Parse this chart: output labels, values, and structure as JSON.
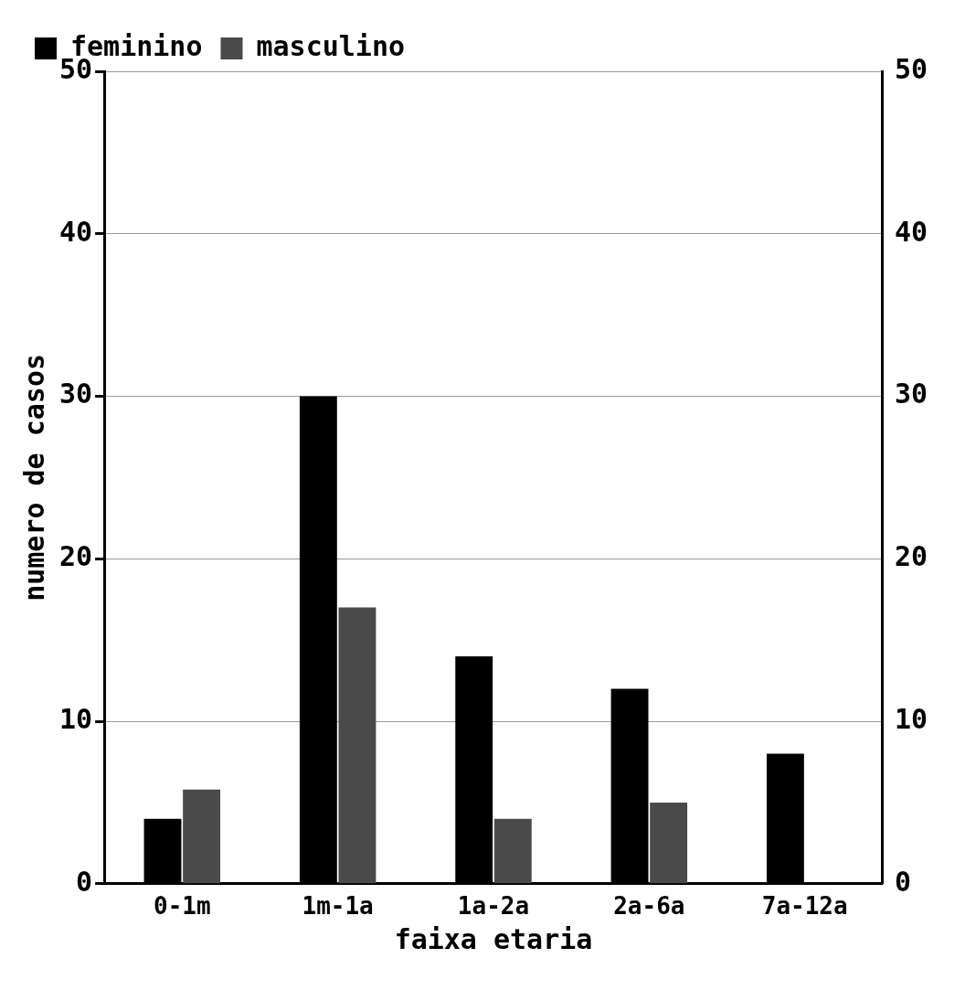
{
  "chart_data": {
    "type": "bar",
    "xlabel": "faixa etaria",
    "ylabel": "numero de casos",
    "categories": [
      "0-1m",
      "1m-1a",
      "1a-2a",
      "2a-6a",
      "7a-12a"
    ],
    "series": [
      {
        "name": "feminino",
        "color": "#000000",
        "values": [
          4,
          30,
          14,
          12,
          8
        ]
      },
      {
        "name": "masculino",
        "color": "#4a4a4a",
        "values": [
          5.8,
          17,
          4,
          5,
          null
        ]
      }
    ],
    "ylim": [
      0,
      50
    ],
    "yticks": [
      0,
      10,
      20,
      30,
      40,
      50
    ],
    "y2lim": [
      0,
      50
    ],
    "y2ticks": [
      0,
      10,
      20,
      30,
      40,
      50
    ],
    "grid": "y",
    "legend": "top"
  }
}
